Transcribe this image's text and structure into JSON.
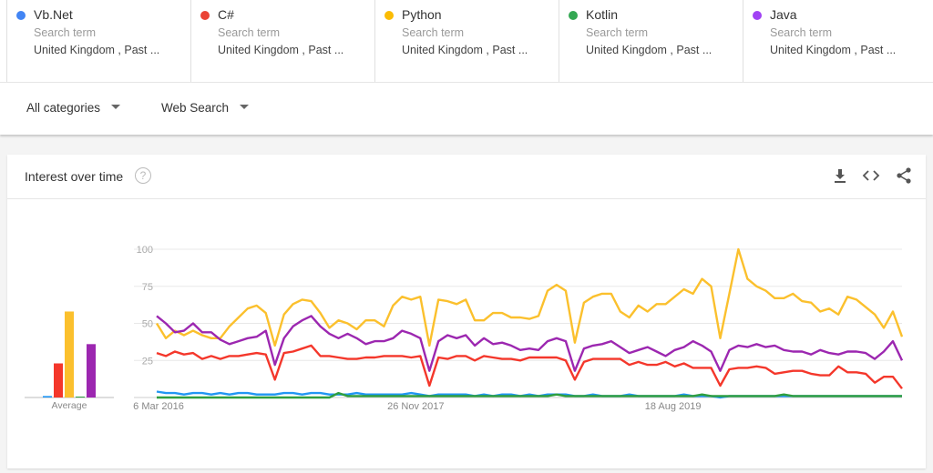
{
  "terms": [
    {
      "name": "Vb.Net",
      "type": "Search term",
      "location": "United Kingdom , Past ...",
      "color": "#4285f4"
    },
    {
      "name": "C#",
      "type": "Search term",
      "location": "United Kingdom , Past ...",
      "color": "#ea4335"
    },
    {
      "name": "Python",
      "type": "Search term",
      "location": "United Kingdom , Past ...",
      "color": "#fbbc04"
    },
    {
      "name": "Kotlin",
      "type": "Search term",
      "location": "United Kingdom , Past ...",
      "color": "#34a853"
    },
    {
      "name": "Java",
      "type": "Search term",
      "location": "United Kingdom , Past ...",
      "color": "#a142f4"
    }
  ],
  "filters": {
    "category": "All categories",
    "search_type": "Web Search"
  },
  "card": {
    "title": "Interest over time",
    "help": "?"
  },
  "chart_data": {
    "type": "line",
    "title": "Interest over time",
    "ylim": [
      0,
      100
    ],
    "yticks": [
      "25",
      "50",
      "75",
      "100"
    ],
    "xticks": [
      {
        "label": "6 Mar 2016",
        "index": 0
      },
      {
        "label": "26 Nov 2017",
        "index": 28.3
      },
      {
        "label": "18 Aug 2019",
        "index": 56.6
      }
    ],
    "average": {
      "label": "Average",
      "values": [
        1,
        23,
        58,
        0.5,
        36
      ]
    },
    "series": [
      {
        "name": "Vb.Net",
        "color": "#2196f3",
        "values": [
          4,
          3,
          3,
          2,
          3,
          3,
          2,
          3,
          2,
          3,
          3,
          2,
          2,
          2,
          3,
          3,
          2,
          3,
          3,
          2,
          2,
          2,
          3,
          2,
          2,
          2,
          2,
          2,
          3,
          2,
          1,
          2,
          2,
          2,
          2,
          1,
          2,
          1,
          2,
          2,
          1,
          2,
          1,
          2,
          2,
          2,
          1,
          1,
          2,
          1,
          1,
          1,
          2,
          1,
          1,
          1,
          1,
          1,
          2,
          1,
          1,
          1,
          0,
          1,
          1,
          1,
          1,
          1,
          1,
          1,
          1,
          1,
          1,
          1,
          1,
          1,
          1,
          1,
          1,
          1,
          1,
          1,
          1
        ]
      },
      {
        "name": "C#",
        "color": "#f4372b",
        "values": [
          30,
          28,
          31,
          29,
          30,
          26,
          28,
          26,
          28,
          28,
          29,
          30,
          29,
          12,
          30,
          31,
          33,
          35,
          28,
          28,
          27,
          26,
          26,
          27,
          27,
          28,
          28,
          28,
          27,
          28,
          8,
          27,
          26,
          28,
          28,
          25,
          28,
          27,
          26,
          26,
          25,
          27,
          27,
          27,
          27,
          25,
          12,
          24,
          26,
          26,
          26,
          26,
          22,
          24,
          22,
          22,
          24,
          21,
          23,
          20,
          20,
          20,
          8,
          19,
          20,
          20,
          21,
          20,
          16,
          17,
          18,
          18,
          16,
          15,
          15,
          21,
          17,
          17,
          16,
          10,
          14,
          14,
          6
        ]
      },
      {
        "name": "Python",
        "color": "#fbc02d",
        "values": [
          50,
          40,
          45,
          42,
          45,
          42,
          40,
          40,
          48,
          54,
          60,
          62,
          57,
          35,
          56,
          63,
          66,
          65,
          57,
          47,
          52,
          50,
          46,
          52,
          52,
          48,
          62,
          68,
          66,
          68,
          35,
          66,
          65,
          63,
          66,
          52,
          52,
          57,
          57,
          54,
          54,
          53,
          55,
          72,
          76,
          72,
          37,
          64,
          68,
          70,
          70,
          58,
          54,
          62,
          58,
          63,
          63,
          68,
          73,
          70,
          80,
          75,
          40,
          70,
          100,
          80,
          75,
          72,
          67,
          67,
          70,
          65,
          64,
          58,
          60,
          56,
          68,
          66,
          61,
          56,
          47,
          58,
          41
        ]
      },
      {
        "name": "Kotlin",
        "color": "#2e9e3e",
        "values": [
          0,
          0,
          0,
          0,
          0,
          0,
          0,
          0,
          0,
          0,
          0,
          0,
          0,
          0,
          0,
          0,
          0,
          0,
          0,
          0,
          3,
          1,
          1,
          1,
          1,
          1,
          1,
          1,
          1,
          1,
          1,
          1,
          1,
          1,
          1,
          1,
          1,
          1,
          1,
          1,
          1,
          1,
          1,
          1,
          2,
          1,
          1,
          1,
          1,
          1,
          1,
          1,
          1,
          1,
          1,
          1,
          1,
          1,
          1,
          1,
          2,
          1,
          1,
          1,
          1,
          1,
          1,
          1,
          1,
          2,
          1,
          1,
          1,
          1,
          1,
          1,
          1,
          1,
          1,
          1,
          1,
          1,
          1
        ]
      },
      {
        "name": "Java",
        "color": "#9c27b0",
        "values": [
          55,
          50,
          44,
          45,
          50,
          44,
          44,
          39,
          36,
          38,
          40,
          41,
          45,
          22,
          40,
          48,
          52,
          55,
          48,
          43,
          40,
          43,
          40,
          36,
          38,
          38,
          40,
          45,
          43,
          40,
          18,
          38,
          42,
          40,
          42,
          35,
          40,
          36,
          37,
          35,
          32,
          33,
          32,
          38,
          40,
          38,
          18,
          33,
          35,
          36,
          38,
          34,
          30,
          32,
          34,
          31,
          28,
          32,
          34,
          38,
          35,
          31,
          18,
          32,
          35,
          34,
          36,
          34,
          35,
          32,
          31,
          31,
          29,
          32,
          30,
          29,
          31,
          31,
          30,
          26,
          31,
          38,
          25
        ]
      }
    ]
  }
}
